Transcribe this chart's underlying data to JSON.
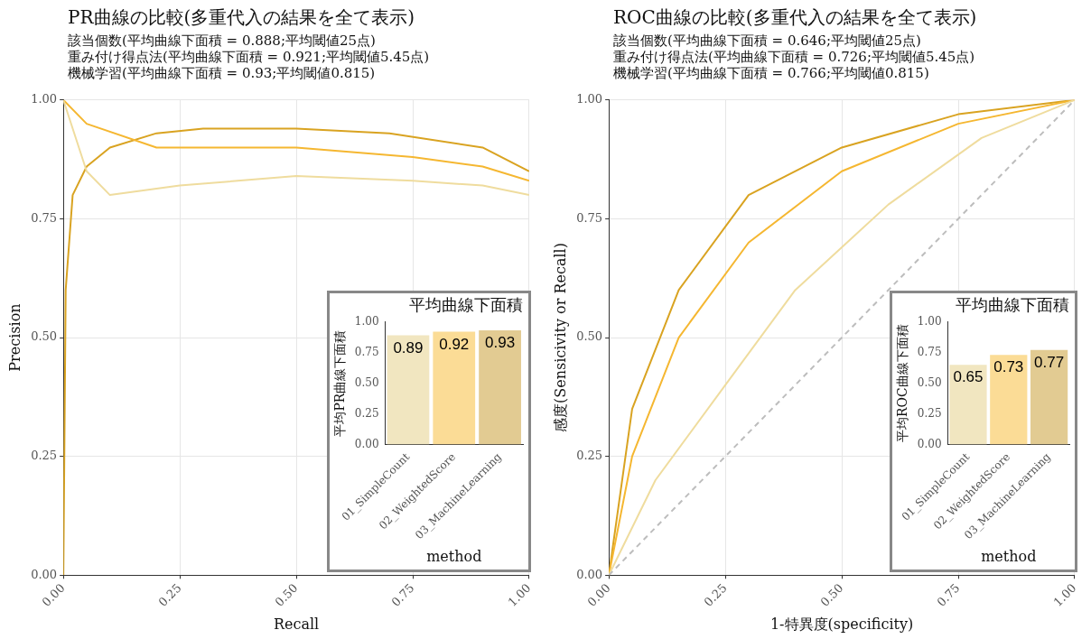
{
  "chart_data": [
    {
      "type": "line",
      "title": "PR曲線の比較(多重代入の結果を全て表示)",
      "subtitle": "該当個数(平均曲線下面積 = 0.888;平均閾値25点)\n重み付け得点法(平均曲線下面積 = 0.921;平均閾値5.45点)\n機械学習(平均曲線下面積 = 0.93;平均閾値0.815)",
      "xlabel": "Recall",
      "ylabel": "Precision",
      "xlim": [
        0,
        1
      ],
      "ylim": [
        0,
        1
      ],
      "xticks": [
        {
          "value": 0,
          "label": "0.00"
        },
        {
          "value": 0.25,
          "label": "0.25"
        },
        {
          "value": 0.5,
          "label": "0.50"
        },
        {
          "value": 0.75,
          "label": "0.75"
        },
        {
          "value": 1,
          "label": "1.00"
        }
      ],
      "yticks": [
        {
          "value": 0,
          "label": "0.00"
        },
        {
          "value": 0.25,
          "label": "0.25"
        },
        {
          "value": 0.5,
          "label": "0.50"
        },
        {
          "value": 0.75,
          "label": "0.75"
        },
        {
          "value": 1,
          "label": "1.00"
        }
      ],
      "grid": true,
      "marker": "none",
      "series": [
        {
          "color": "#efdc9e",
          "x": [
            0,
            0.05,
            0.1,
            0.25,
            0.5,
            0.75,
            0.9,
            1
          ],
          "values": [
            1,
            0.85,
            0.8,
            0.82,
            0.84,
            0.83,
            0.82,
            0.8
          ]
        },
        {
          "color": "#f5b731",
          "x": [
            0,
            0.05,
            0.2,
            0.5,
            0.75,
            0.9,
            1
          ],
          "values": [
            1,
            0.95,
            0.9,
            0.9,
            0.88,
            0.86,
            0.83
          ]
        },
        {
          "color": "#d9a321",
          "x": [
            0,
            0.005,
            0.02,
            0.05,
            0.1,
            0.2,
            0.3,
            0.5,
            0.7,
            0.9,
            1
          ],
          "values": [
            0,
            0.6,
            0.8,
            0.86,
            0.9,
            0.93,
            0.94,
            0.94,
            0.93,
            0.9,
            0.85
          ]
        }
      ]
    },
    {
      "type": "bar",
      "title": "平均曲線下面積",
      "ylabel": "平均PR曲線下面積",
      "xlabel": "method",
      "categories": [
        "01_SimpleCount",
        "02_WeightedScore",
        "03_MachineLearning"
      ],
      "values": [
        0.89,
        0.92,
        0.93
      ],
      "colors": [
        "#f1e6c0",
        "#fbdc96",
        "#e2cb92"
      ],
      "data_labels": true,
      "ylim": [
        0,
        1
      ],
      "yticks": [
        {
          "value": 0,
          "label": "0.00"
        },
        {
          "value": 0.25,
          "label": "0.25"
        },
        {
          "value": 0.5,
          "label": "0.50"
        },
        {
          "value": 0.75,
          "label": "0.75"
        },
        {
          "value": 1,
          "label": "1.00"
        }
      ]
    },
    {
      "type": "line",
      "title": "ROC曲線の比較(多重代入の結果を全て表示)",
      "subtitle": "該当個数(平均曲線下面積 = 0.646;平均閾値25点)\n重み付け得点法(平均曲線下面積 = 0.726;平均閾値5.45点)\n機械学習(平均曲線下面積 = 0.766;平均閾値0.815)",
      "xlabel": "1-特異度(specificity)",
      "ylabel": "感度(Sensicivity or Recall)",
      "xlim": [
        0,
        1
      ],
      "ylim": [
        0,
        1
      ],
      "xticks": [
        {
          "value": 0,
          "label": "0.00"
        },
        {
          "value": 0.25,
          "label": "0.25"
        },
        {
          "value": 0.5,
          "label": "0.50"
        },
        {
          "value": 0.75,
          "label": "0.75"
        },
        {
          "value": 1,
          "label": "1.00"
        }
      ],
      "yticks": [
        {
          "value": 0,
          "label": "0.00"
        },
        {
          "value": 0.25,
          "label": "0.25"
        },
        {
          "value": 0.5,
          "label": "0.50"
        },
        {
          "value": 0.75,
          "label": "0.75"
        },
        {
          "value": 1,
          "label": "1.00"
        }
      ],
      "grid": true,
      "marker": "none",
      "series": [
        {
          "color": "#bdbdbd",
          "line_style": "dashed",
          "x": [
            0,
            1
          ],
          "values": [
            0,
            1
          ]
        },
        {
          "color": "#efdc9e",
          "x": [
            0,
            0.1,
            0.25,
            0.4,
            0.6,
            0.8,
            1
          ],
          "values": [
            0,
            0.2,
            0.4,
            0.6,
            0.78,
            0.92,
            1
          ]
        },
        {
          "color": "#f5b731",
          "x": [
            0,
            0.05,
            0.15,
            0.3,
            0.5,
            0.75,
            1
          ],
          "values": [
            0,
            0.25,
            0.5,
            0.7,
            0.85,
            0.95,
            1
          ]
        },
        {
          "color": "#d9a321",
          "x": [
            0,
            0.05,
            0.15,
            0.3,
            0.5,
            0.75,
            1
          ],
          "values": [
            0,
            0.35,
            0.6,
            0.8,
            0.9,
            0.97,
            1
          ]
        }
      ]
    },
    {
      "type": "bar",
      "title": "平均曲線下面積",
      "ylabel": "平均ROC曲線下面積",
      "xlabel": "method",
      "categories": [
        "01_SimpleCount",
        "02_WeightedScore",
        "03_MachineLearning"
      ],
      "values": [
        0.65,
        0.73,
        0.77
      ],
      "colors": [
        "#f1e6c0",
        "#fbdc96",
        "#e2cb92"
      ],
      "data_labels": true,
      "ylim": [
        0,
        1
      ],
      "yticks": [
        {
          "value": 0,
          "label": "0.00"
        },
        {
          "value": 0.25,
          "label": "0.25"
        },
        {
          "value": 0.5,
          "label": "0.50"
        },
        {
          "value": 0.75,
          "label": "0.75"
        },
        {
          "value": 1,
          "label": "1.00"
        }
      ]
    }
  ]
}
